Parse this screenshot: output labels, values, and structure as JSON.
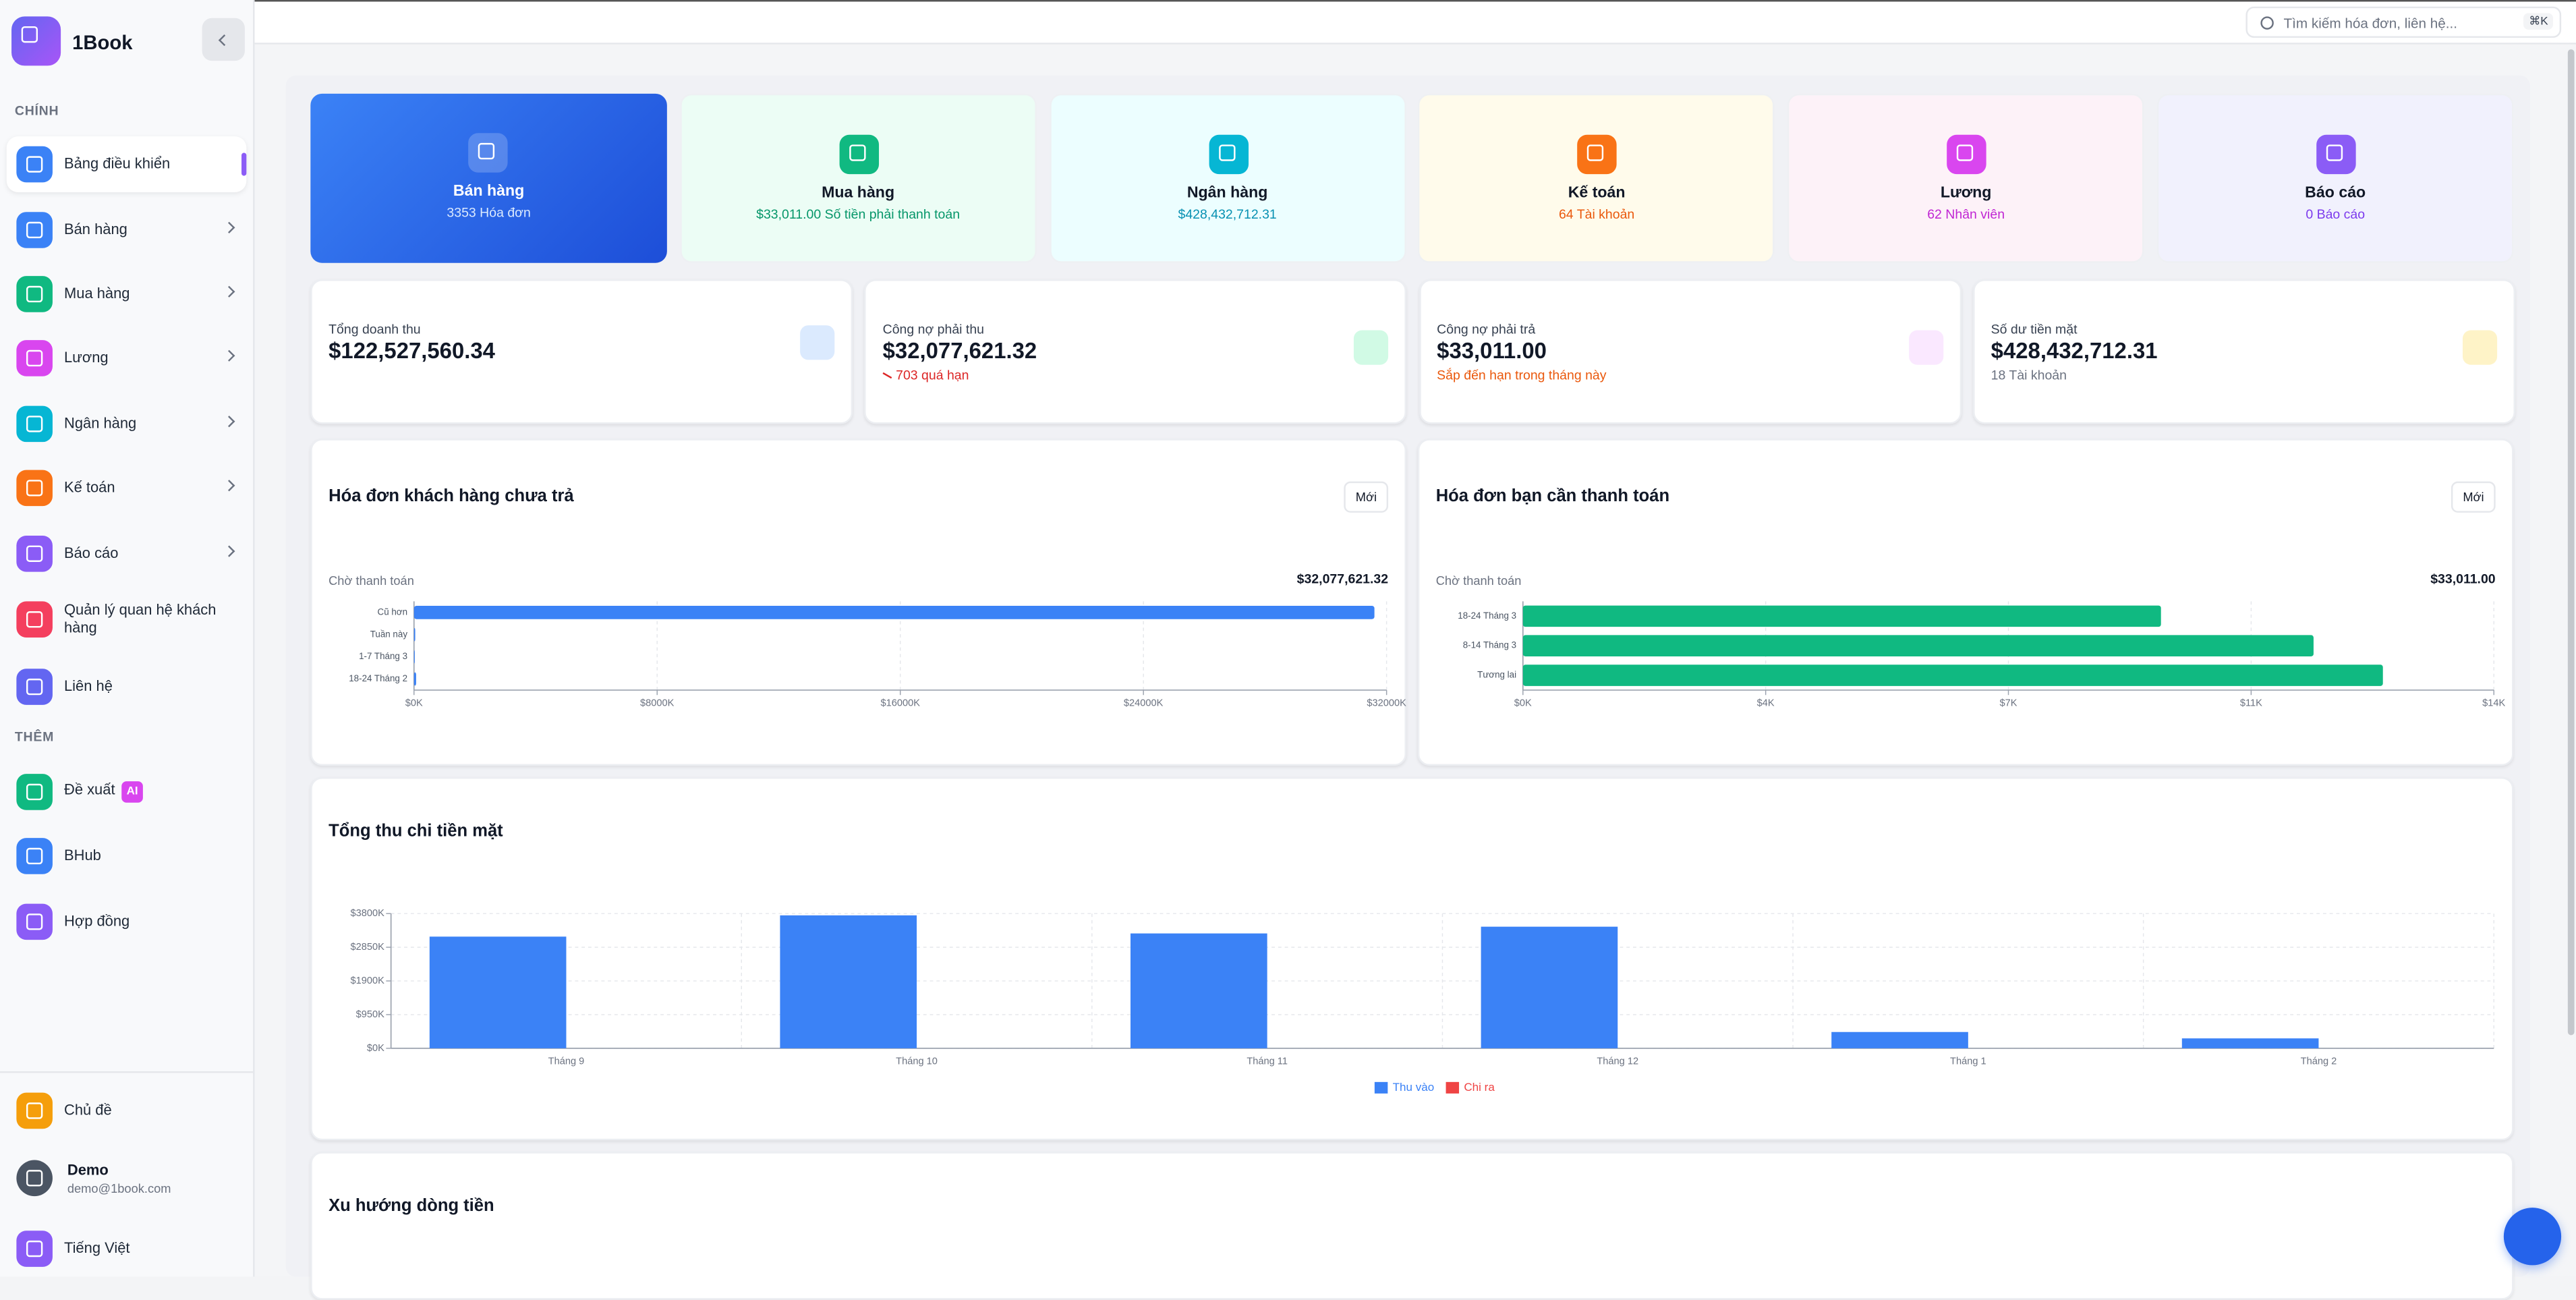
{
  "app": {
    "brand": "1Book"
  },
  "search": {
    "placeholder": "Tìm kiếm hóa đơn, liên hệ...",
    "shortcut": "⌘K"
  },
  "sidebar": {
    "sections": [
      {
        "title": "CHÍNH",
        "items": [
          {
            "label": "Bảng điều khiển"
          },
          {
            "label": "Bán hàng"
          },
          {
            "label": "Mua hàng"
          },
          {
            "label": "Lương"
          },
          {
            "label": "Ngân hàng"
          },
          {
            "label": "Kế toán"
          },
          {
            "label": "Báo cáo"
          },
          {
            "label": "Quản lý quan hệ khách hàng"
          },
          {
            "label": "Liên hệ"
          }
        ]
      },
      {
        "title": "THÊM",
        "items": [
          {
            "label": "Đề xuất",
            "badge": "AI"
          },
          {
            "label": "BHub"
          },
          {
            "label": "Hợp đồng"
          }
        ]
      }
    ],
    "footer": {
      "theme": "Chủ đề",
      "user_name": "Demo",
      "user_email": "demo@1book.com",
      "language": "Tiếng Việt"
    }
  },
  "modules": [
    {
      "title": "Bán hàng",
      "subtitle": "3353 Hóa đơn"
    },
    {
      "title": "Mua hàng",
      "subtitle": "$33,011.00 Số tiền phải thanh toán"
    },
    {
      "title": "Ngân hàng",
      "subtitle": "$428,432,712.31"
    },
    {
      "title": "Kế toán",
      "subtitle": "64 Tài khoản"
    },
    {
      "title": "Lương",
      "subtitle": "62 Nhân viên"
    },
    {
      "title": "Báo cáo",
      "subtitle": "0 Báo cáo"
    }
  ],
  "stats": [
    {
      "label": "Tổng doanh thu",
      "value": "$122,527,560.34"
    },
    {
      "label": "Công nợ phải thu",
      "value": "$32,077,621.32",
      "note": "703 quá hạn"
    },
    {
      "label": "Công nợ phải trả",
      "value": "$33,011.00",
      "note": "Sắp đến hạn trong tháng này"
    },
    {
      "label": "Số dư tiền mặt",
      "value": "$428,432,712.31",
      "note": "18 Tài khoản"
    }
  ],
  "receivable": {
    "title": "Hóa đơn khách hàng chưa trả",
    "button": "Mới",
    "caption": "Chờ thanh toán",
    "total": "$32,077,621.32",
    "chart": {
      "type": "bar",
      "orientation": "horizontal",
      "categories": [
        "Cũ hơn",
        "Tuần này",
        "1-7 Tháng 3",
        "18-24 Tháng 2"
      ],
      "values": [
        31600,
        40,
        25,
        70
      ],
      "color": "#3b82f6",
      "xlim": [
        0,
        32000
      ],
      "xticks": [
        {
          "value": 0,
          "label": "$0K"
        },
        {
          "value": 8000,
          "label": "$8000K"
        },
        {
          "value": 16000,
          "label": "$16000K"
        },
        {
          "value": 24000,
          "label": "$24000K"
        },
        {
          "value": 32000,
          "label": "$32000K"
        }
      ],
      "grid": true
    }
  },
  "payable": {
    "title": "Hóa đơn bạn cần thanh toán",
    "button": "Mới",
    "caption": "Chờ thanh toán",
    "total": "$33,011.00",
    "chart": {
      "type": "bar",
      "orientation": "horizontal",
      "categories": [
        "18-24 Tháng 3",
        "8-14 Tháng 3",
        "Tương lai"
      ],
      "values": [
        9.2,
        11.4,
        12.4
      ],
      "color": "#10b981",
      "xlim": [
        0,
        14
      ],
      "xticks": [
        {
          "value": 0,
          "label": "$0K"
        },
        {
          "value": 3.5,
          "label": "$4K"
        },
        {
          "value": 7,
          "label": "$7K"
        },
        {
          "value": 10.5,
          "label": "$11K"
        },
        {
          "value": 14,
          "label": "$14K"
        }
      ],
      "grid": true
    }
  },
  "cashflow": {
    "title": "Tổng thu chi tiền mặt",
    "chart": {
      "type": "bar",
      "categories": [
        "Tháng 9",
        "Tháng 10",
        "Tháng 11",
        "Tháng 12",
        "Tháng 1",
        "Tháng 2"
      ],
      "series": [
        {
          "name": "Thu vào",
          "color": "#3b82f6",
          "values": [
            3150,
            3750,
            3240,
            3430,
            460,
            280
          ]
        },
        {
          "name": "Chi ra",
          "color": "#ef4444",
          "values": [
            0,
            0,
            0,
            0,
            0,
            0
          ]
        }
      ],
      "ylim": [
        0,
        3800
      ],
      "yticks": [
        {
          "value": 0,
          "label": "$0K"
        },
        {
          "value": 950,
          "label": "$950K"
        },
        {
          "value": 1900,
          "label": "$1900K"
        },
        {
          "value": 2850,
          "label": "$2850K"
        },
        {
          "value": 3800,
          "label": "$3800K"
        }
      ],
      "grid": true,
      "legend": "bottom"
    }
  },
  "trend": {
    "title": "Xu hướng dòng tiền"
  }
}
